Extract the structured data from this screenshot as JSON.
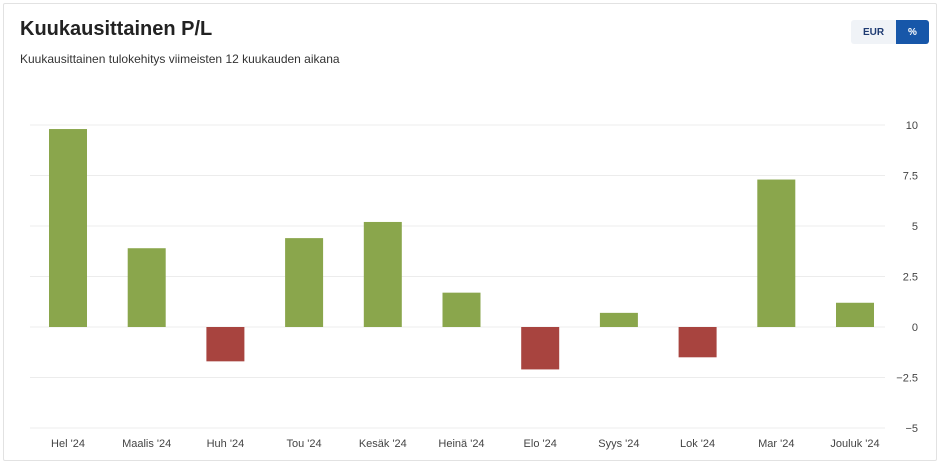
{
  "header": {
    "title": "Kuukausittainen P/L",
    "subtitle": "Kuukausittainen tulokehitys viimeisten 12 kuukauden aikana"
  },
  "toggle": {
    "eur_label": "EUR",
    "pct_label": "%",
    "selected": "%"
  },
  "colors": {
    "positive": "#8aa64c",
    "negative": "#a8443f",
    "gridline": "#ececec",
    "active_button": "#1757a9"
  },
  "chart_data": {
    "type": "bar",
    "categories": [
      "Hel '24",
      "Maalis '24",
      "Huh '24",
      "Tou '24",
      "Kesäk '24",
      "Heinä '24",
      "Elo '24",
      "Syys '24",
      "Lok '24",
      "Mar '24",
      "Jouluk '24"
    ],
    "values": [
      9.8,
      3.9,
      -1.7,
      4.4,
      5.2,
      1.7,
      -2.1,
      0.7,
      -1.5,
      7.3,
      1.2
    ],
    "ylim": [
      -5,
      10
    ],
    "yticks": [
      10,
      7.5,
      5,
      2.5,
      0,
      -2.5,
      -5
    ],
    "ytick_labels": [
      "10",
      "7.5",
      "5",
      "2.5",
      "0",
      "−2.5",
      "−5"
    ],
    "y_axis_side": "right",
    "grid": true
  }
}
